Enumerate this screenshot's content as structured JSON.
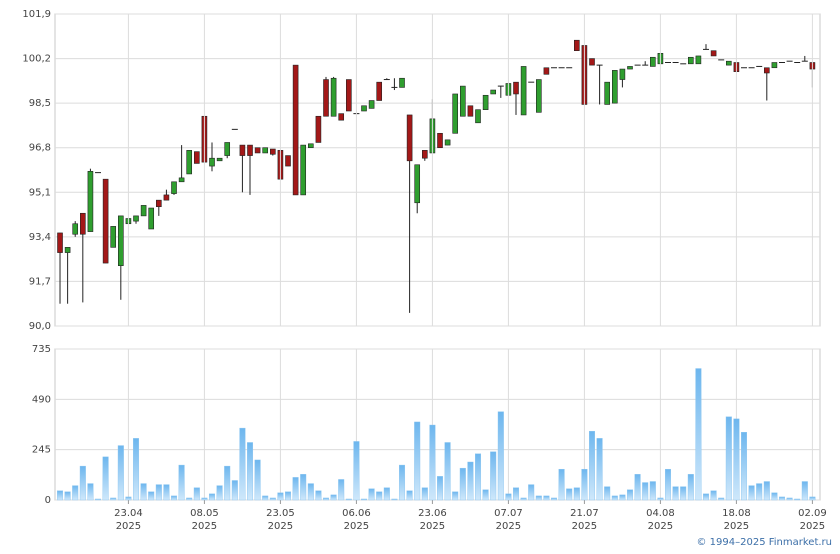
{
  "chart_data": [
    {
      "type": "candlestick",
      "xlim": [
        -0.66,
        100
      ],
      "ylim": [
        90,
        101.9
      ],
      "yticks": [
        {
          "value": 90,
          "label": "90,0"
        },
        {
          "value": 91.7,
          "label": "91,7"
        },
        {
          "value": 93.4,
          "label": "93,4"
        },
        {
          "value": 95.1,
          "label": "95,1"
        },
        {
          "value": 96.8,
          "label": "96,8"
        },
        {
          "value": 98.5,
          "label": "98,5"
        },
        {
          "value": 100.2,
          "label": "100,2"
        },
        {
          "value": 101.9,
          "label": "101,9"
        }
      ],
      "grid": true,
      "up_color": "#2f9e2f",
      "down_color": "#a31818",
      "open": [
        93.55,
        92.8,
        93.5,
        94.3,
        93.6,
        95.85,
        95.6,
        93.0,
        92.3,
        93.9,
        94.0,
        94.2,
        93.7,
        94.8,
        95.0,
        95.05,
        95.5,
        95.8,
        96.65,
        98.0,
        96.1,
        96.3,
        96.5,
        97.5,
        96.9,
        96.9,
        96.8,
        96.6,
        96.75,
        96.7,
        96.5,
        99.95,
        95.0,
        96.8,
        98.0,
        99.4,
        98.0,
        98.1,
        99.4,
        98.1,
        98.2,
        98.3,
        99.3,
        99.4,
        99.1,
        99.1,
        98.05,
        94.7,
        96.7,
        96.6,
        97.35,
        96.9,
        97.35,
        98.0,
        98.4,
        97.75,
        98.25,
        98.85,
        99.15,
        98.8,
        99.3,
        98.05,
        99.3,
        98.15,
        99.85,
        99.85,
        99.85,
        99.85,
        100.9,
        100.7,
        100.2,
        99.95,
        98.45,
        98.5,
        99.4,
        99.8,
        99.95,
        99.95,
        99.9,
        100.0,
        100.05,
        100.05,
        100.0,
        100.0,
        100.0,
        100.55,
        100.5,
        100.15,
        99.95,
        100.05,
        99.85,
        99.85,
        99.9,
        99.85,
        99.85,
        100.05,
        100.1,
        100.05,
        100.1,
        100.05
      ],
      "high": [
        93.55,
        93.0,
        94.0,
        94.3,
        96.0,
        95.85,
        95.6,
        93.8,
        94.2,
        94.1,
        94.2,
        94.6,
        94.5,
        94.8,
        95.2,
        95.5,
        96.9,
        96.7,
        96.65,
        98.0,
        97.0,
        96.4,
        97.0,
        97.5,
        96.9,
        96.9,
        96.8,
        96.8,
        96.75,
        96.7,
        96.5,
        99.95,
        96.9,
        96.95,
        98.0,
        99.5,
        99.5,
        98.1,
        99.4,
        98.1,
        98.4,
        98.6,
        99.3,
        99.45,
        99.45,
        99.45,
        98.05,
        96.15,
        96.7,
        98.65,
        97.35,
        97.1,
        98.85,
        99.15,
        98.4,
        98.25,
        98.8,
        99.0,
        99.15,
        99.25,
        99.3,
        99.9,
        99.3,
        99.4,
        99.85,
        99.85,
        99.85,
        99.85,
        100.9,
        100.7,
        100.2,
        99.95,
        99.3,
        99.75,
        99.8,
        99.9,
        99.95,
        100.1,
        100.25,
        100.4,
        100.05,
        100.05,
        100.0,
        100.25,
        100.3,
        100.75,
        100.5,
        100.15,
        100.1,
        100.05,
        99.85,
        99.85,
        99.9,
        99.85,
        100.05,
        100.05,
        100.1,
        100.05,
        100.3,
        100.05
      ],
      "low": [
        90.85,
        90.85,
        93.4,
        90.9,
        93.6,
        95.85,
        92.4,
        93.0,
        91.0,
        93.9,
        93.9,
        94.2,
        93.7,
        94.2,
        94.8,
        95.0,
        95.5,
        95.8,
        96.2,
        96.25,
        95.9,
        96.3,
        96.4,
        97.5,
        95.1,
        95.0,
        96.6,
        96.6,
        96.5,
        95.6,
        96.1,
        95.0,
        95.0,
        96.8,
        97.0,
        98.0,
        98.0,
        97.85,
        98.2,
        98.1,
        98.2,
        98.3,
        98.6,
        99.4,
        99.0,
        99.1,
        90.5,
        94.3,
        96.3,
        96.6,
        96.8,
        96.9,
        97.35,
        98.0,
        98.0,
        97.75,
        98.25,
        98.85,
        98.7,
        98.8,
        98.05,
        98.05,
        99.3,
        98.15,
        99.6,
        99.85,
        99.85,
        99.85,
        100.5,
        98.45,
        99.95,
        98.45,
        98.45,
        98.5,
        99.1,
        99.8,
        99.95,
        99.95,
        99.9,
        100.0,
        100.05,
        100.05,
        100.0,
        100.0,
        100.0,
        100.55,
        100.3,
        100.15,
        99.95,
        99.7,
        99.85,
        99.85,
        99.9,
        98.6,
        99.85,
        100.05,
        100.1,
        100.05,
        100.1,
        99.1
      ],
      "close": [
        92.8,
        93.0,
        93.9,
        93.5,
        95.9,
        95.85,
        92.4,
        93.8,
        94.2,
        94.1,
        94.2,
        94.6,
        94.5,
        94.55,
        94.8,
        95.5,
        95.65,
        96.7,
        96.2,
        96.25,
        96.4,
        96.4,
        97.0,
        97.5,
        96.5,
        96.5,
        96.6,
        96.8,
        96.55,
        95.6,
        96.1,
        95.0,
        96.9,
        96.95,
        97.0,
        98.0,
        99.45,
        97.85,
        98.2,
        98.1,
        98.4,
        98.6,
        98.6,
        99.4,
        99.1,
        99.45,
        96.3,
        96.15,
        96.4,
        97.9,
        96.8,
        97.1,
        98.85,
        99.15,
        98.0,
        98.25,
        98.8,
        99.0,
        99.15,
        99.25,
        98.85,
        99.9,
        99.3,
        99.4,
        99.6,
        99.85,
        99.85,
        99.85,
        100.5,
        98.45,
        99.95,
        99.95,
        99.3,
        99.75,
        99.8,
        99.9,
        99.95,
        99.95,
        100.25,
        100.4,
        100.05,
        100.05,
        100.0,
        100.25,
        100.3,
        100.55,
        100.3,
        100.15,
        100.1,
        99.7,
        99.85,
        99.85,
        99.9,
        99.65,
        100.05,
        100.05,
        100.1,
        100.05,
        100.1,
        99.8
      ]
    },
    {
      "type": "bar",
      "xlim": [
        -0.66,
        100
      ],
      "ylim": [
        0,
        735
      ],
      "yticks": [
        0,
        245,
        490,
        735
      ],
      "xticks": [
        {
          "value": 9,
          "label": "23.04",
          "year": "2025"
        },
        {
          "value": 19,
          "label": "08.05",
          "year": "2025"
        },
        {
          "value": 29,
          "label": "23.05",
          "year": "2025"
        },
        {
          "value": 39,
          "label": "06.06",
          "year": "2025"
        },
        {
          "value": 49,
          "label": "23.06",
          "year": "2025"
        },
        {
          "value": 59,
          "label": "07.07",
          "year": "2025"
        },
        {
          "value": 69,
          "label": "21.07",
          "year": "2025"
        },
        {
          "value": 79,
          "label": "04.08",
          "year": "2025"
        },
        {
          "value": 89,
          "label": "18.08",
          "year": "2025"
        },
        {
          "value": 99,
          "label": "02.09",
          "year": "2025"
        }
      ],
      "grid": true,
      "color": "#8cc6f0",
      "values": [
        45,
        40,
        70,
        165,
        80,
        5,
        210,
        10,
        265,
        15,
        300,
        80,
        40,
        75,
        75,
        20,
        170,
        10,
        60,
        10,
        30,
        70,
        165,
        95,
        350,
        280,
        195,
        20,
        10,
        35,
        40,
        110,
        125,
        80,
        45,
        10,
        25,
        100,
        5,
        285,
        5,
        55,
        40,
        60,
        5,
        170,
        45,
        380,
        60,
        365,
        115,
        280,
        40,
        155,
        185,
        225,
        50,
        235,
        430,
        30,
        60,
        10,
        75,
        20,
        20,
        10,
        150,
        55,
        60,
        150,
        335,
        300,
        65,
        20,
        25,
        50,
        125,
        85,
        90,
        10,
        150,
        65,
        65,
        125,
        640,
        30,
        45,
        10,
        405,
        395,
        330,
        70,
        80,
        90,
        35,
        15,
        10,
        5,
        90,
        15
      ]
    }
  ],
  "footer": "© 1994–2025 Finmarket.ru"
}
